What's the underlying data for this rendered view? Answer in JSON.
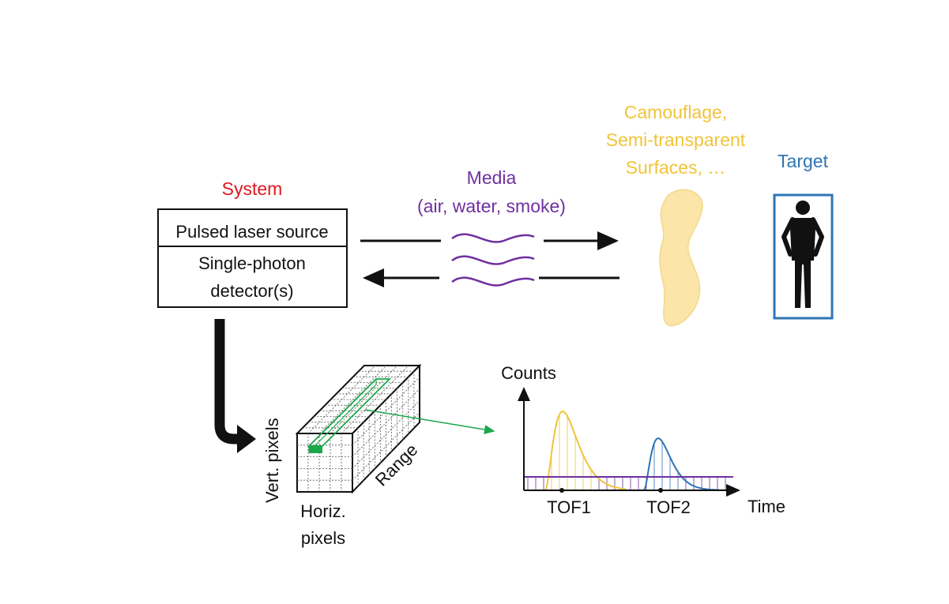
{
  "system": {
    "title": "System",
    "laser_label": "Pulsed laser source",
    "detector_line1": "Single-photon",
    "detector_line2": "detector(s)"
  },
  "media": {
    "line1": "Media",
    "line2": "(air, water, smoke)"
  },
  "camouflage": {
    "line1": "Camouflage,",
    "line2": "Semi-transparent",
    "line3": "Surfaces, …"
  },
  "target": {
    "title": "Target"
  },
  "cube": {
    "vertical_label": "Vert. pixels",
    "horizontal_line1": "Horiz.",
    "horizontal_line2": "pixels",
    "depth_label": "Range"
  },
  "histogram": {
    "y_label": "Counts",
    "x_label": "Time",
    "peak1_label": "TOF1",
    "peak2_label": "TOF2"
  },
  "colors": {
    "system": "#e0191f",
    "media": "#7030a0",
    "camouflage": "#f0c43a",
    "camouflage_fill": "#fbe5a8",
    "target": "#2e74b5",
    "pixel": "#1aa84a",
    "text": "#111111"
  }
}
